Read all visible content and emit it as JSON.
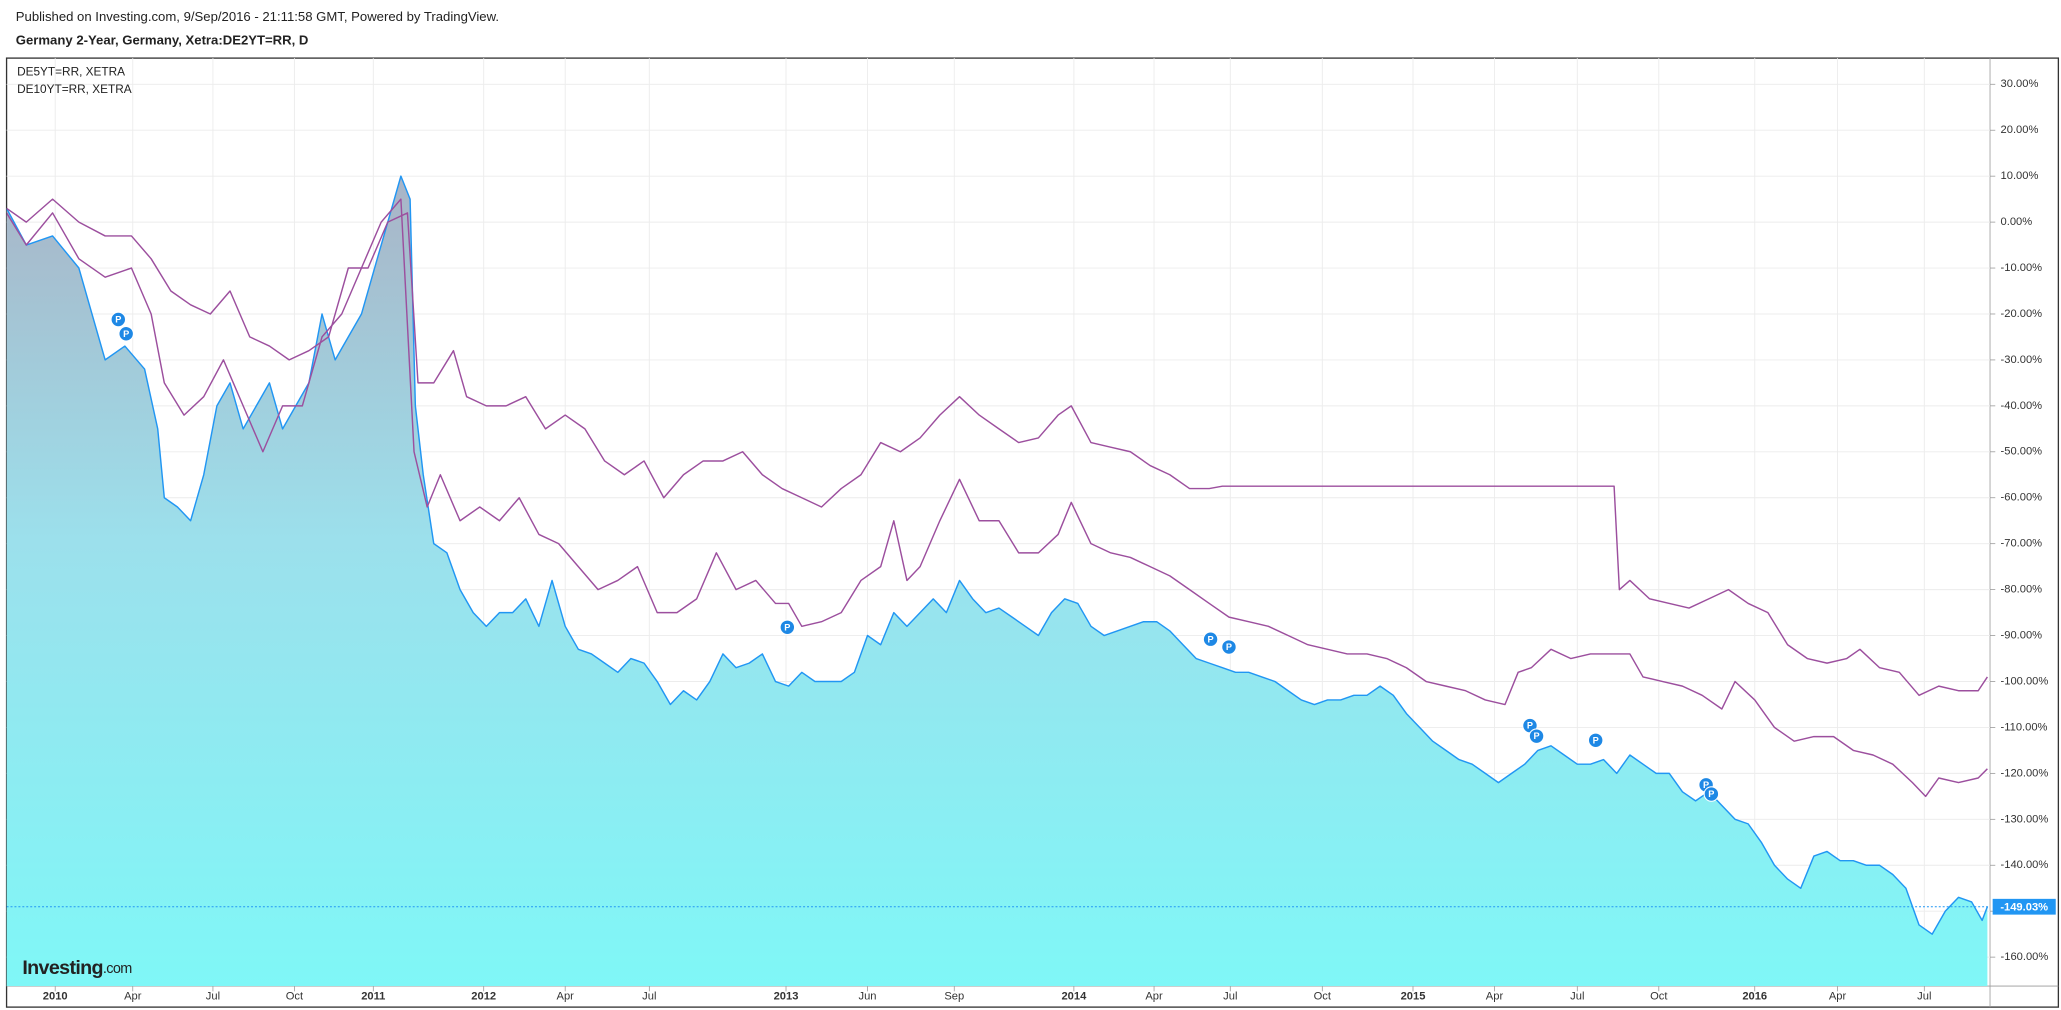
{
  "chart_data": {
    "type": "line",
    "published": "Published on Investing.com, 9/Sep/2016 - 21:11:58 GMT, Powered by TradingView.",
    "title": "Germany 2-Year, Germany, Xetra:DE2YT=RR, D",
    "logo": {
      "name": "Investing",
      "suffix": ".com"
    },
    "xlim": [
      0.5,
      151.4
    ],
    "ylim": [
      -166.3,
      35.7
    ],
    "xticks": [
      {
        "value": 4.2,
        "label": "2010"
      },
      {
        "value": 10.1,
        "label": "Apr"
      },
      {
        "value": 16.2,
        "label": "Jul"
      },
      {
        "value": 22.4,
        "label": "Oct"
      },
      {
        "value": 28.4,
        "label": "2011"
      },
      {
        "value": 36.8,
        "label": "2012"
      },
      {
        "value": 43,
        "label": "Apr"
      },
      {
        "value": 49.4,
        "label": "Jul"
      },
      {
        "value": 59.8,
        "label": "2013"
      },
      {
        "value": 66,
        "label": "Jun"
      },
      {
        "value": 72.6,
        "label": "Sep"
      },
      {
        "value": 81.7,
        "label": "2014"
      },
      {
        "value": 87.8,
        "label": "Apr"
      },
      {
        "value": 93.6,
        "label": "Jul"
      },
      {
        "value": 100.6,
        "label": "Oct"
      },
      {
        "value": 107.5,
        "label": "2015"
      },
      {
        "value": 113.7,
        "label": "Apr"
      },
      {
        "value": 120,
        "label": "Jul"
      },
      {
        "value": 126.2,
        "label": "Oct"
      },
      {
        "value": 133.5,
        "label": "2016"
      },
      {
        "value": 139.8,
        "label": "Apr"
      },
      {
        "value": 146.4,
        "label": "Jul"
      }
    ],
    "yticks": [
      {
        "value": 30,
        "label": "30.00%"
      },
      {
        "value": 20,
        "label": "20.00%"
      },
      {
        "value": 10,
        "label": "10.00%"
      },
      {
        "value": 0,
        "label": "0.00%"
      },
      {
        "value": -10,
        "label": "-10.00%"
      },
      {
        "value": -20,
        "label": "-20.00%"
      },
      {
        "value": -30,
        "label": "-30.00%"
      },
      {
        "value": -40,
        "label": "-40.00%"
      },
      {
        "value": -50,
        "label": "-50.00%"
      },
      {
        "value": -60,
        "label": "-60.00%"
      },
      {
        "value": -70,
        "label": "-70.00%"
      },
      {
        "value": -80,
        "label": "-80.00%"
      },
      {
        "value": -90,
        "label": "-90.00%"
      },
      {
        "value": -100,
        "label": "-100.00%"
      },
      {
        "value": -110,
        "label": "-110.00%"
      },
      {
        "value": -120,
        "label": "-120.00%"
      },
      {
        "value": -130,
        "label": "-130.00%"
      },
      {
        "value": -140,
        "label": "-140.00%"
      },
      {
        "value": -150,
        "label": "-150.00%"
      },
      {
        "value": -160,
        "label": "-160.00%"
      }
    ],
    "grid": true,
    "last_value_label": "-149.03%",
    "series": [
      {
        "color": "#2196f3",
        "area": true,
        "x": [
          0.5,
          2,
          4,
          6,
          7,
          8,
          9.5,
          11,
          12,
          12.5,
          13.5,
          14.5,
          15.5,
          16.5,
          17.5,
          18.5,
          19.5,
          20.5,
          21.5,
          22.5,
          23.5,
          24.5,
          25.5,
          26.5,
          27.5,
          28.5,
          29.5,
          30.5,
          31.2,
          31.6,
          32.2,
          33,
          34,
          35,
          36,
          37,
          38,
          39,
          40,
          41,
          42,
          43,
          44,
          45,
          46,
          47,
          48,
          49,
          50,
          51,
          52,
          53,
          54,
          55,
          56,
          57,
          58,
          59,
          60,
          61,
          62,
          63,
          64,
          65,
          66,
          67,
          68,
          69,
          70,
          71,
          72,
          73,
          74,
          75,
          76,
          77,
          78,
          79,
          80,
          81,
          82,
          83,
          84,
          85,
          86,
          87,
          88,
          89,
          90,
          91,
          92,
          93,
          94,
          95,
          96,
          97,
          98,
          99,
          100,
          101,
          102,
          103,
          104,
          105,
          106,
          107,
          108,
          109,
          110,
          111,
          112,
          113,
          114,
          115,
          116,
          117,
          118,
          119,
          120,
          121,
          122,
          123,
          124,
          125,
          126,
          127,
          128,
          129,
          130,
          131,
          132,
          133,
          134,
          135,
          136,
          137,
          138,
          139,
          140,
          141,
          142,
          143,
          144,
          145,
          146,
          147,
          148,
          149,
          150,
          150.8,
          151.2
        ],
        "values": [
          3,
          -5,
          -3,
          -10,
          -20,
          -30,
          -27,
          -32,
          -45,
          -60,
          -62,
          -65,
          -55,
          -40,
          -35,
          -45,
          -40,
          -35,
          -45,
          -40,
          -35,
          -20,
          -30,
          -25,
          -20,
          -10,
          0,
          10,
          5,
          -40,
          -55,
          -70,
          -72,
          -80,
          -85,
          -88,
          -85,
          -85,
          -82,
          -88,
          -78,
          -88,
          -93,
          -94,
          -96,
          -98,
          -95,
          -96,
          -100,
          -105,
          -102,
          -104,
          -100,
          -94,
          -97,
          -96,
          -94,
          -100,
          -101,
          -98,
          -100,
          -100,
          -100,
          -98,
          -90,
          -92,
          -85,
          -88,
          -85,
          -82,
          -85,
          -78,
          -82,
          -85,
          -84,
          -86,
          -88,
          -90,
          -85,
          -82,
          -83,
          -88,
          -90,
          -89,
          -88,
          -87,
          -87,
          -89,
          -92,
          -95,
          -96,
          -97,
          -98,
          -98,
          -99,
          -100,
          -102,
          -104,
          -105,
          -104,
          -104,
          -103,
          -103,
          -101,
          -103,
          -107,
          -110,
          -113,
          -115,
          -117,
          -118,
          -120,
          -122,
          -120,
          -118,
          -115,
          -114,
          -116,
          -118,
          -118,
          -117,
          -120,
          -116,
          -118,
          -120,
          -120,
          -124,
          -126,
          -124,
          -127,
          -130,
          -131,
          -135,
          -140,
          -143,
          -145,
          -138,
          -137,
          -139,
          -139,
          -140,
          -140,
          -142,
          -145,
          -153,
          -155,
          -150,
          -147,
          -148,
          -152,
          -149.03
        ]
      },
      {
        "name": "DE5YT=RR, XETRA",
        "color": "#9c4f9e",
        "x": [
          0.5,
          2,
          4,
          6,
          8,
          10,
          11.5,
          12.5,
          14,
          15.5,
          17,
          18.5,
          20,
          21.5,
          23,
          24.5,
          26,
          27.5,
          29,
          30.5,
          31.5,
          32.5,
          33.5,
          35,
          36.5,
          38,
          39.5,
          41,
          42.5,
          44,
          45.5,
          47,
          48.5,
          50,
          51.5,
          53,
          54.5,
          56,
          57.5,
          59,
          60,
          61,
          62.5,
          64,
          65.5,
          67,
          68,
          69,
          70,
          71.5,
          73,
          74.5,
          76,
          77.5,
          79,
          80.5,
          81.5,
          83,
          84.5,
          86,
          87.5,
          89,
          90.5,
          92,
          93.5,
          95,
          96.5,
          98,
          99.5,
          101,
          102.5,
          104,
          105.5,
          107,
          108.5,
          110,
          111.5,
          113,
          114.5,
          115.5,
          116.5,
          118,
          119.5,
          121,
          122.5,
          124,
          125,
          126.5,
          128,
          129.5,
          131,
          132,
          133.5,
          135,
          136.5,
          138,
          139.5,
          141,
          142.5,
          144,
          145.5,
          146.5,
          147.5,
          149,
          150.5,
          151.2
        ],
        "values": [
          2,
          -5,
          2,
          -8,
          -12,
          -10,
          -20,
          -35,
          -42,
          -38,
          -30,
          -40,
          -50,
          -40,
          -40,
          -25,
          -20,
          -10,
          0,
          5,
          -50,
          -62,
          -55,
          -65,
          -62,
          -65,
          -60,
          -68,
          -70,
          -75,
          -80,
          -78,
          -75,
          -85,
          -85,
          -82,
          -72,
          -80,
          -78,
          -83,
          -83,
          -88,
          -87,
          -85,
          -78,
          -75,
          -65,
          -78,
          -75,
          -65,
          -56,
          -65,
          -65,
          -72,
          -72,
          -68,
          -61,
          -70,
          -72,
          -73,
          -75,
          -77,
          -80,
          -83,
          -86,
          -87,
          -88,
          -90,
          -92,
          -93,
          -94,
          -94,
          -95,
          -97,
          -100,
          -101,
          -102,
          -104,
          -105,
          -98,
          -97,
          -93,
          -95,
          -94,
          -94,
          -94,
          -99,
          -100,
          -101,
          -103,
          -106,
          -100,
          -104,
          -110,
          -113,
          -112,
          -112,
          -115,
          -116,
          -118,
          -122,
          -125,
          -121,
          -122,
          -121,
          -119
        ]
      },
      {
        "name": "DE10YT=RR, XETRA",
        "color": "#9c4f9e",
        "x": [
          0.5,
          2,
          4,
          6,
          8,
          10,
          11.5,
          13,
          14.5,
          16,
          17.5,
          19,
          20.5,
          22,
          23.5,
          25,
          26.5,
          28,
          29.5,
          31,
          31.8,
          33,
          34.5,
          35.5,
          37,
          38.5,
          40,
          41.5,
          43,
          44.5,
          46,
          47.5,
          49,
          50.5,
          52,
          53.5,
          55,
          56.5,
          58,
          59.5,
          61,
          62.5,
          64,
          65.5,
          67,
          68.5,
          70,
          71.5,
          73,
          74.5,
          76,
          77.5,
          79,
          80.5,
          81.5,
          83,
          84.5,
          86,
          87.5,
          89,
          90.5,
          92,
          93,
          122.8,
          123.2,
          124,
          125.5,
          127,
          128.5,
          130,
          131.5,
          133,
          134.5,
          136,
          137.5,
          139,
          140.5,
          141.5,
          143,
          144.5,
          146,
          147.5,
          149,
          150.5,
          151.2
        ],
        "values": [
          3,
          0,
          5,
          0,
          -3,
          -3,
          -8,
          -15,
          -18,
          -20,
          -15,
          -25,
          -27,
          -30,
          -28,
          -25,
          -10,
          -10,
          0,
          2,
          -35,
          -35,
          -28,
          -38,
          -40,
          -40,
          -38,
          -45,
          -42,
          -45,
          -52,
          -55,
          -52,
          -60,
          -55,
          -52,
          -52,
          -50,
          -55,
          -58,
          -60,
          -62,
          -58,
          -55,
          -48,
          -50,
          -47,
          -42,
          -38,
          -42,
          -45,
          -48,
          -47,
          -42,
          -40,
          -48,
          -49,
          -50,
          -53,
          -55,
          -58,
          -58,
          -57.5,
          -57.5,
          -80,
          -78,
          -82,
          -83,
          -84,
          -82,
          -80,
          -83,
          -85,
          -92,
          -95,
          -96,
          -95,
          -93,
          -97,
          -98,
          -103,
          -101,
          -102,
          -102,
          -99
        ]
      }
    ],
    "markers": [
      {
        "x": 9,
        "y": -21.2,
        "label": "P"
      },
      {
        "x": 9.6,
        "y": -24.3,
        "label": "P"
      },
      {
        "x": 59.9,
        "y": -88.2,
        "label": "P"
      },
      {
        "x": 92.1,
        "y": -90.8,
        "label": "P"
      },
      {
        "x": 93.5,
        "y": -92.5,
        "label": "P"
      },
      {
        "x": 116.4,
        "y": -109.6,
        "label": "P"
      },
      {
        "x": 116.9,
        "y": -111.9,
        "label": "P"
      },
      {
        "x": 121.4,
        "y": -112.8,
        "label": "P"
      },
      {
        "x": 129.8,
        "y": -122.5,
        "label": "P"
      },
      {
        "x": 130.2,
        "y": -124.5,
        "label": "P"
      }
    ]
  }
}
